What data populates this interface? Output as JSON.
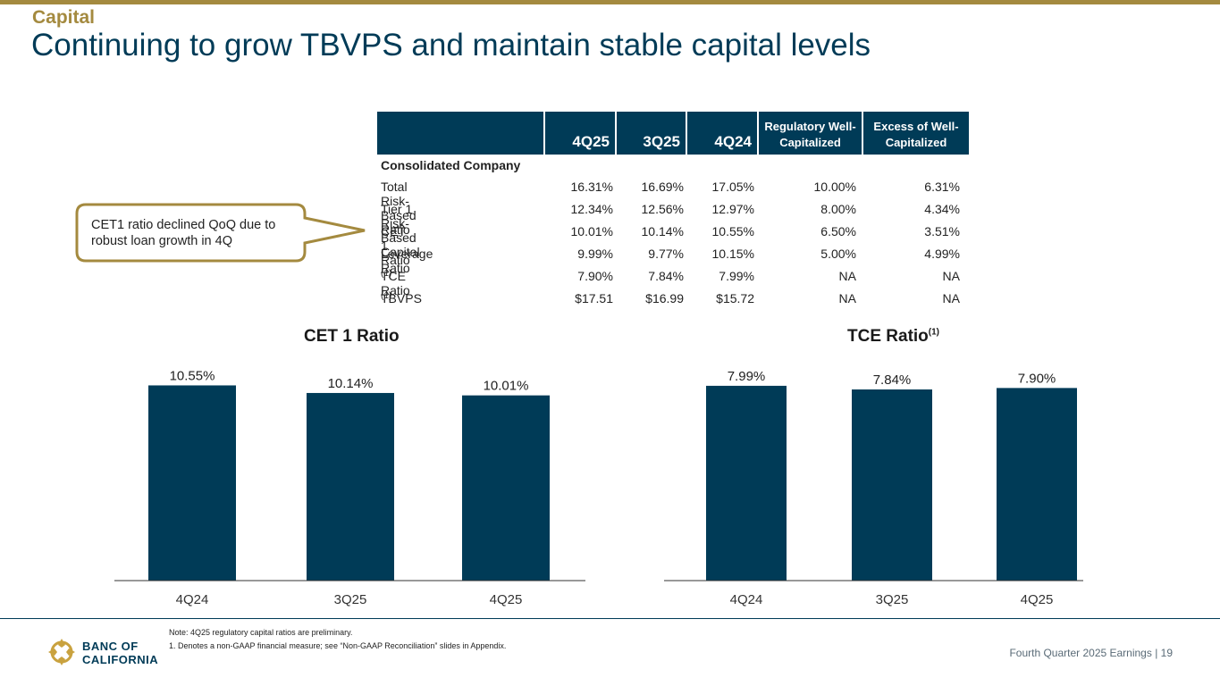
{
  "section": "Capital",
  "title": "Continuing to grow TBVPS and maintain stable capital levels",
  "table": {
    "headers": [
      "4Q25",
      "3Q25",
      "4Q24"
    ],
    "reg_header": [
      "Regulatory Well-",
      "Capitalized"
    ],
    "excess_header": [
      "Excess of Well-",
      "Capitalized"
    ],
    "section_label": "Consolidated Company",
    "rows": [
      {
        "label": "Total Risk-Based Ratio",
        "sup": "",
        "values": [
          "16.31%",
          "16.69%",
          "17.05%",
          "10.00%",
          "6.31%"
        ]
      },
      {
        "label": "Tier 1 Risk-Based Capital",
        "sup": "",
        "values": [
          "12.34%",
          "12.56%",
          "12.97%",
          "8.00%",
          "4.34%"
        ]
      },
      {
        "label": "CET 1 Ratio",
        "sup": "",
        "values": [
          "10.01%",
          "10.14%",
          "10.55%",
          "6.50%",
          "3.51%"
        ]
      },
      {
        "label": "Leverage Ratio",
        "sup": "",
        "values": [
          "9.99%",
          "9.77%",
          "10.15%",
          "5.00%",
          "4.99%"
        ]
      },
      {
        "label": "TCE Ratio",
        "sup": "(1)",
        "values": [
          "7.90%",
          "7.84%",
          "7.99%",
          "NA",
          "NA"
        ]
      },
      {
        "label": "TBVPS",
        "sup": "(1)",
        "values": [
          "$17.51",
          "$16.99",
          "$15.72",
          "NA",
          "NA"
        ]
      }
    ]
  },
  "callout": "CET1 ratio declined QoQ due to robust loan growth in 4Q",
  "chart_data": [
    {
      "type": "bar",
      "title": "CET 1 Ratio",
      "title_sup": "",
      "categories": [
        "4Q24",
        "3Q25",
        "4Q25"
      ],
      "values": [
        10.55,
        10.14,
        10.01
      ],
      "labels": [
        "10.55%",
        "10.14%",
        "10.01%"
      ],
      "ylim": [
        0,
        11.2
      ]
    },
    {
      "type": "bar",
      "title": "TCE Ratio",
      "title_sup": "(1)",
      "categories": [
        "4Q24",
        "3Q25",
        "4Q25"
      ],
      "values": [
        7.99,
        7.84,
        7.9
      ],
      "labels": [
        "7.99%",
        "7.84%",
        "7.90%"
      ],
      "ylim": [
        0,
        8.5
      ]
    }
  ],
  "colors": {
    "bar": "#003b57",
    "gold": "#a48a3f",
    "navy": "#003b57"
  },
  "notes": {
    "note": "Note: 4Q25 regulatory capital ratios are preliminary.",
    "footnote": "1.  Denotes a non-GAAP financial measure; see “Non-GAAP Reconciliation” slides in Appendix."
  },
  "footer": "Fourth Quarter 2025 Earnings |  19",
  "logo": {
    "line1": "BANC OF",
    "line2": "CALIFORNIA"
  }
}
